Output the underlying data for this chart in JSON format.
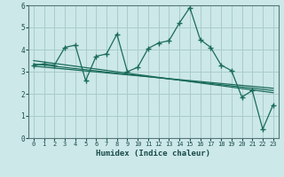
{
  "xlabel": "Humidex (Indice chaleur)",
  "bg_color": "#cce8e8",
  "grid_color": "#aacccc",
  "line_color": "#1a6b5a",
  "xlim": [
    -0.5,
    23.5
  ],
  "ylim": [
    0,
    6
  ],
  "xticks": [
    0,
    1,
    2,
    3,
    4,
    5,
    6,
    7,
    8,
    9,
    10,
    11,
    12,
    13,
    14,
    15,
    16,
    17,
    18,
    19,
    20,
    21,
    22,
    23
  ],
  "yticks": [
    0,
    1,
    2,
    3,
    4,
    5,
    6
  ],
  "main_series": [
    3.3,
    3.35,
    3.3,
    4.1,
    4.2,
    2.6,
    3.7,
    3.8,
    4.7,
    3.0,
    3.2,
    4.05,
    4.3,
    4.4,
    5.2,
    5.9,
    4.45,
    4.1,
    3.3,
    3.05,
    1.85,
    2.15,
    0.4,
    1.5
  ],
  "trend1_x": [
    0,
    23
  ],
  "trend1_y": [
    3.5,
    2.05
  ],
  "trend2_x": [
    0,
    23
  ],
  "trend2_y": [
    3.35,
    2.15
  ],
  "trend3_x": [
    0,
    23
  ],
  "trend3_y": [
    3.25,
    2.25
  ]
}
